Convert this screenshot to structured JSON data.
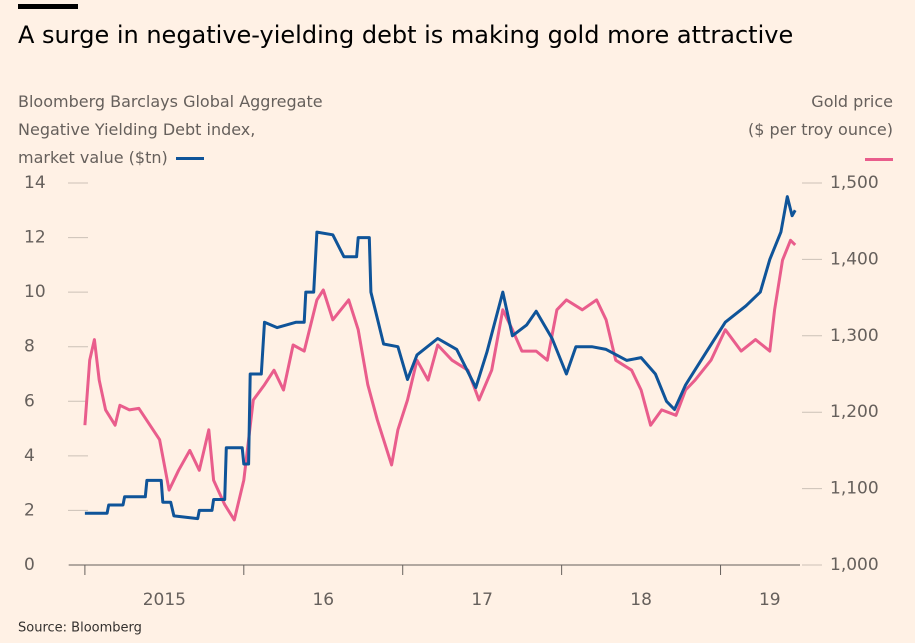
{
  "chart_data": {
    "type": "line",
    "title": "A surge in negative-yielding debt is making gold more attractive",
    "source": "Source: Bloomberg",
    "xlim": [
      2014.9,
      2019.5
    ],
    "xticks": [
      2015,
      2016,
      2017,
      2018,
      2019
    ],
    "xtick_labels": [
      {
        "value": 2015.5,
        "label": "2015"
      },
      {
        "value": 2016.5,
        "label": "16"
      },
      {
        "value": 2017.5,
        "label": "17"
      },
      {
        "value": 2018.5,
        "label": "18"
      },
      {
        "value": 2019.31,
        "label": "19"
      }
    ],
    "ylim": [
      0,
      14
    ],
    "yticks": [
      0,
      2,
      4,
      6,
      8,
      10,
      12,
      14
    ],
    "y2lim": [
      1000,
      1500
    ],
    "y2ticks": [
      {
        "value": 1000,
        "label": "1,000"
      },
      {
        "value": 1100,
        "label": "1,100"
      },
      {
        "value": 1200,
        "label": "1,200"
      },
      {
        "value": 1300,
        "label": "1,300"
      },
      {
        "value": 1400,
        "label": "1,400"
      },
      {
        "value": 1500,
        "label": "1,500"
      }
    ],
    "series": [
      {
        "name": "Bloomberg Barclays Global Aggregate\nNegative Yielding Debt index,\nmarket value ($tn)",
        "color": "#0f5499",
        "axis": "y",
        "x": [
          2015.0,
          2015.14,
          2015.15,
          2015.24,
          2015.25,
          2015.38,
          2015.39,
          2015.48,
          2015.49,
          2015.54,
          2015.56,
          2015.71,
          2015.72,
          2015.8,
          2015.81,
          2015.88,
          2015.89,
          2015.99,
          2016.0,
          2016.03,
          2016.04,
          2016.11,
          2016.13,
          2016.21,
          2016.33,
          2016.38,
          2016.39,
          2016.44,
          2016.46,
          2016.56,
          2016.63,
          2016.71,
          2016.72,
          2016.79,
          2016.8,
          2016.88,
          2016.97,
          2017.03,
          2017.09,
          2017.22,
          2017.34,
          2017.46,
          2017.53,
          2017.63,
          2017.69,
          2017.78,
          2017.84,
          2017.94,
          2018.03,
          2018.09,
          2018.19,
          2018.28,
          2018.41,
          2018.5,
          2018.59,
          2018.66,
          2018.71,
          2018.78,
          2018.91,
          2019.03,
          2019.16,
          2019.25,
          2019.31,
          2019.38,
          2019.42,
          2019.45,
          2019.47
        ],
        "values": [
          1.9,
          1.9,
          2.2,
          2.2,
          2.5,
          2.5,
          3.1,
          3.1,
          2.3,
          2.3,
          1.8,
          1.7,
          2.0,
          2.0,
          2.4,
          2.4,
          4.3,
          4.3,
          3.7,
          3.7,
          7.0,
          7.0,
          8.9,
          8.7,
          8.9,
          8.9,
          10.0,
          10.0,
          12.2,
          12.1,
          11.3,
          11.3,
          12.0,
          12.0,
          10.0,
          8.1,
          8.0,
          6.8,
          7.7,
          8.3,
          7.9,
          6.5,
          7.8,
          10.0,
          8.4,
          8.8,
          9.3,
          8.3,
          7.0,
          8.0,
          8.0,
          7.9,
          7.5,
          7.6,
          7.0,
          6.0,
          5.7,
          6.6,
          7.8,
          8.9,
          9.5,
          10.0,
          11.2,
          12.2,
          13.5,
          12.8,
          13.0
        ]
      },
      {
        "name": "Gold price\n($ per troy ounce)",
        "color": "#e95d8c",
        "axis": "y2",
        "x": [
          2015.0,
          2015.03,
          2015.06,
          2015.09,
          2015.13,
          2015.19,
          2015.22,
          2015.28,
          2015.34,
          2015.41,
          2015.47,
          2015.53,
          2015.59,
          2015.66,
          2015.72,
          2015.78,
          2015.81,
          2015.88,
          2015.94,
          2016.0,
          2016.06,
          2016.13,
          2016.19,
          2016.25,
          2016.31,
          2016.38,
          2016.46,
          2016.5,
          2016.56,
          2016.66,
          2016.72,
          2016.78,
          2016.84,
          2016.93,
          2016.97,
          2017.03,
          2017.09,
          2017.16,
          2017.22,
          2017.31,
          2017.41,
          2017.48,
          2017.56,
          2017.63,
          2017.69,
          2017.75,
          2017.84,
          2017.91,
          2017.97,
          2018.03,
          2018.13,
          2018.22,
          2018.28,
          2018.34,
          2018.44,
          2018.5,
          2018.56,
          2018.63,
          2018.72,
          2018.78,
          2018.84,
          2018.94,
          2019.03,
          2019.13,
          2019.22,
          2019.31,
          2019.34,
          2019.39,
          2019.44,
          2019.47
        ],
        "values": [
          1183,
          1268,
          1295,
          1242,
          1203,
          1183,
          1209,
          1203,
          1205,
          1183,
          1164,
          1098,
          1124,
          1150,
          1124,
          1177,
          1111,
          1079,
          1059,
          1111,
          1216,
          1236,
          1255,
          1229,
          1288,
          1280,
          1347,
          1360,
          1321,
          1347,
          1308,
          1236,
          1190,
          1131,
          1177,
          1216,
          1268,
          1242,
          1288,
          1268,
          1255,
          1216,
          1255,
          1334,
          1308,
          1280,
          1280,
          1268,
          1334,
          1347,
          1334,
          1347,
          1321,
          1268,
          1255,
          1229,
          1183,
          1203,
          1196,
          1229,
          1242,
          1268,
          1308,
          1280,
          1295,
          1280,
          1334,
          1399,
          1425,
          1419
        ]
      }
    ]
  }
}
